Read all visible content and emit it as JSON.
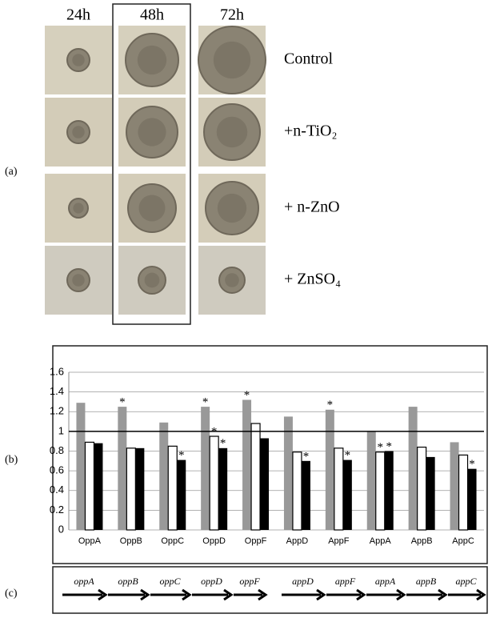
{
  "panel_labels": [
    "(a)",
    "(b)",
    "(c)"
  ],
  "photos": {
    "columns": [
      "24h",
      "48h",
      "72h"
    ],
    "rows": [
      "Control",
      "+n-TiO₂",
      "+ n-ZnO",
      "+ ZnSO₄"
    ]
  },
  "chart_data": {
    "type": "bar",
    "categories": [
      "OppA",
      "OppB",
      "OppC",
      "OppD",
      "OppF",
      "AppD",
      "AppF",
      "AppA",
      "AppB",
      "AppC"
    ],
    "series": [
      {
        "color": "#999999",
        "values": [
          1.29,
          1.25,
          1.09,
          1.25,
          1.32,
          1.15,
          1.22,
          1.0,
          1.25,
          0.89
        ],
        "annotations": [
          null,
          "*",
          null,
          "*",
          "*",
          null,
          "*",
          null,
          null,
          null
        ]
      },
      {
        "color": "#ffffff",
        "values": [
          0.89,
          0.83,
          0.85,
          0.95,
          1.08,
          0.79,
          0.83,
          0.79,
          0.84,
          0.76
        ],
        "annotations": [
          null,
          null,
          null,
          "*",
          null,
          null,
          null,
          "*",
          null,
          null
        ]
      },
      {
        "color": "#000000",
        "values": [
          0.88,
          0.83,
          0.71,
          0.83,
          0.93,
          0.7,
          0.71,
          0.8,
          0.74,
          0.62
        ],
        "annotations": [
          null,
          null,
          "*",
          "*",
          null,
          "*",
          "*",
          "*",
          null,
          "*"
        ]
      }
    ],
    "ylim": [
      0,
      1.6
    ],
    "yticks": [
      0,
      0.2,
      0.4,
      0.6,
      0.8,
      1,
      1.2,
      1.4,
      1.6
    ],
    "grid": true,
    "reference_line": 1
  },
  "genes": [
    "oppA",
    "oppB",
    "oppC",
    "oppD",
    "oppF",
    "appD",
    "appF",
    "appA",
    "appB",
    "appC"
  ]
}
